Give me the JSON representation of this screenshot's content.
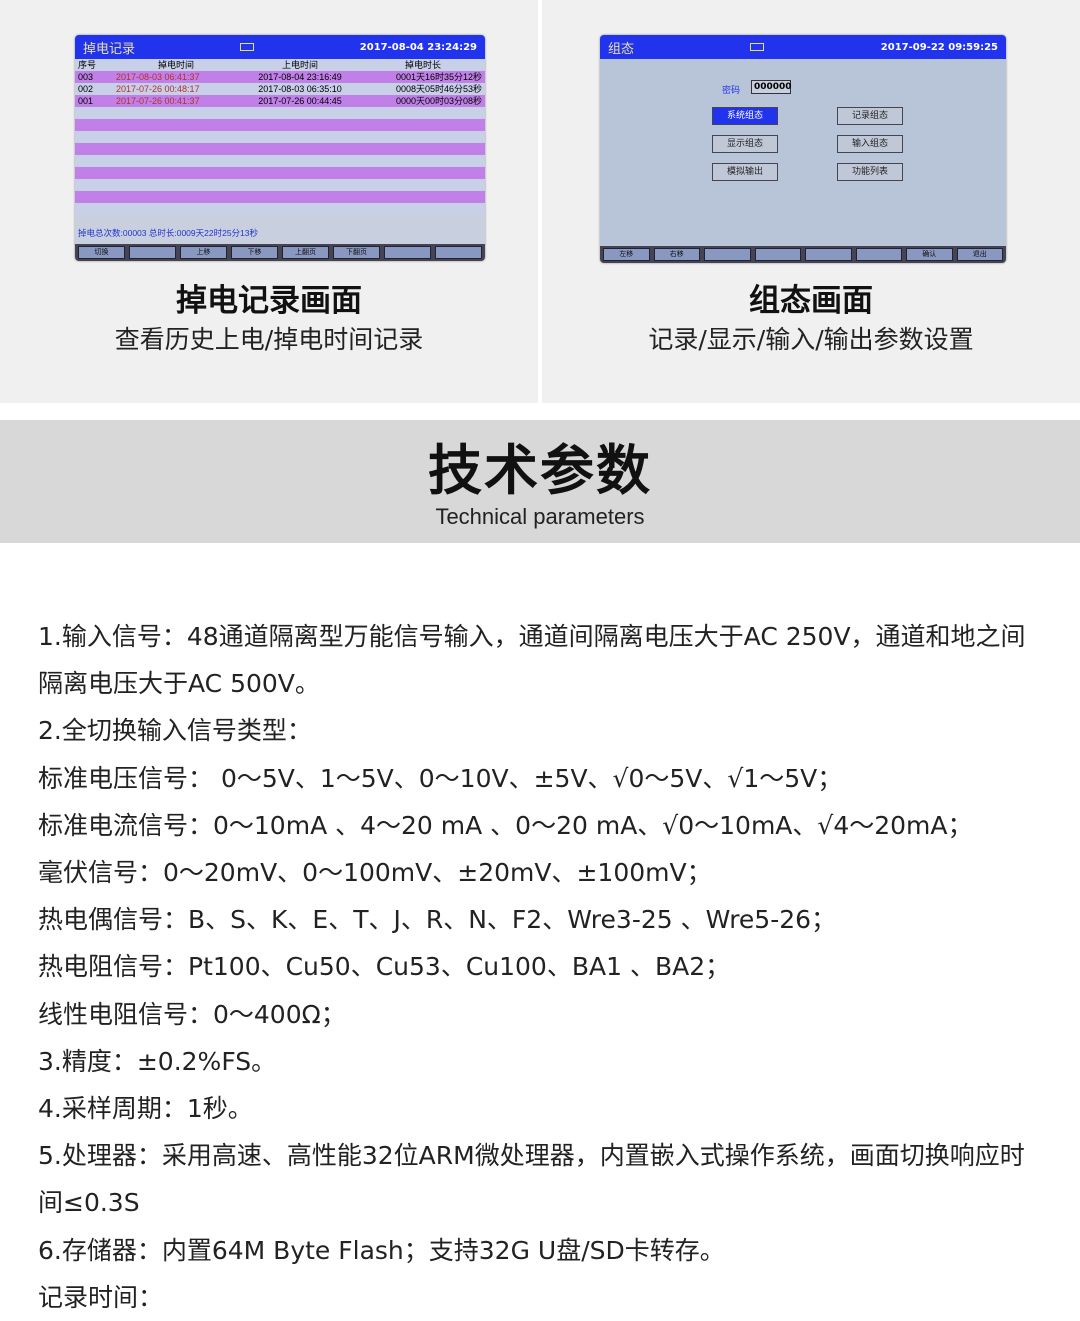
{
  "left_panel": {
    "screen": {
      "title": "掉电记录",
      "datetime": "2017-08-04 23:24:29",
      "headers": [
        "序号",
        "掉电时间",
        "上电时间",
        "掉电时长"
      ],
      "rows": [
        [
          "003",
          "2017-08-03 06:41:37",
          "2017-08-04 23:16:49",
          "0001天16时35分12秒"
        ],
        [
          "002",
          "2017-07-26 00:48:17",
          "2017-08-03 06:35:10",
          "0008天05时46分53秒"
        ],
        [
          "001",
          "2017-07-26 00:41:37",
          "2017-07-26 00:44:45",
          "0000天00时03分08秒"
        ]
      ],
      "summary": "掉电总次数:00003    总时长:0009天22时25分13秒",
      "fkeys": [
        "切换",
        "",
        "上移",
        "下移",
        "上翻页",
        "下翻页",
        "",
        ""
      ]
    },
    "caption_title": "掉电记录画面",
    "caption_sub": "查看历史上电/掉电时间记录"
  },
  "right_panel": {
    "screen": {
      "title": "组态",
      "datetime": "2017-09-22 09:59:25",
      "password_label": "密码",
      "password_value": "000000",
      "buttons": [
        "系统组态",
        "记录组态",
        "显示组态",
        "输入组态",
        "模拟输出",
        "功能列表"
      ],
      "fkeys": [
        "左移",
        "右移",
        "",
        "",
        "",
        "",
        "确认",
        "退出"
      ]
    },
    "caption_title": "组态画面",
    "caption_sub": "记录/显示/输入/输出参数设置"
  },
  "section": {
    "title": "技术参数",
    "subtitle": "Technical parameters"
  },
  "specs": [
    "1.输入信号：48通道隔离型万能信号输入，通道间隔离电压大于AC 250V，通道和地之间隔离电压大于AC 500V。",
    "2.全切换输入信号类型：",
    "标准电压信号： 0～5V、1～5V、0～10V、±5V、√0～5V、√1～5V；",
    "标准电流信号：0～10mA 、4～20 mA 、0～20 mA、√0～10mA、√4～20mA；",
    "毫伏信号：0～20mV、0～100mV、±20mV、±100mV；",
    "热电偶信号：B、S、K、E、T、J、R、N、F2、Wre3-25 、Wre5-26；",
    "热电阻信号：Pt100、Cu50、Cu53、Cu100、BA1 、BA2；",
    "线性电阻信号：0～400Ω；",
    "3.精度：±0.2%FS。",
    "4.采样周期：1秒。",
    "5.处理器：采用高速、高性能32位ARM微处理器，内置嵌入式操作系统，画面切换响应时间≤0.3S",
    "6.存储器：内置64M Byte Flash；支持32G U盘/SD卡转存。",
    "记录时间："
  ]
}
